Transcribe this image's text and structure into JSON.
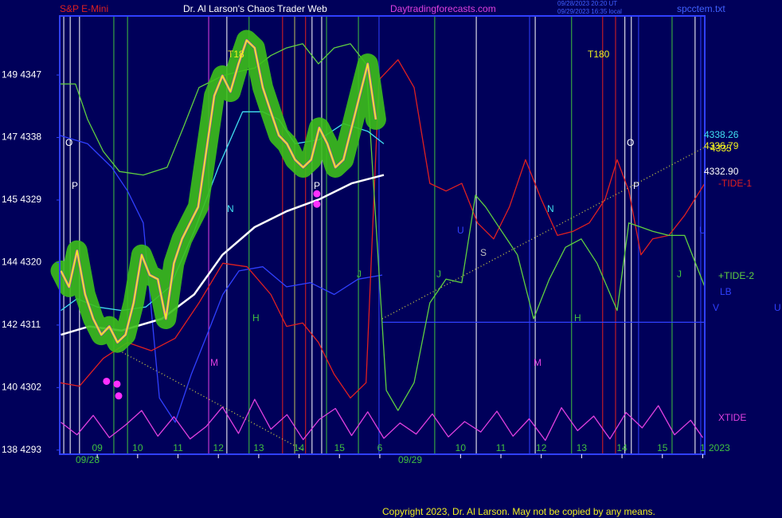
{
  "header": {
    "symbol": "S&P E-Mini",
    "title": "Dr. Al Larson's Chaos Trader Web",
    "site": "Daytradingforecasts.com",
    "stamp1": "09/28/2023 20:20 UT",
    "stamp2": "09/29/2023 16:35 local",
    "file": "spcctem.txt"
  },
  "labels": {
    "dates": [
      "09/28",
      "09/29",
      "2023"
    ],
    "right": [
      "4338.26",
      "4336.79",
      "4335",
      "4332.90",
      "-TIDE-1",
      "+TIDE-2",
      "LB",
      "XTIDE"
    ],
    "letters": [
      "O",
      "P",
      "T18",
      "N",
      "H",
      "M",
      "J",
      "P",
      "O",
      "P",
      "N",
      "H",
      "M",
      "J",
      "U",
      "S",
      "J",
      "U",
      "V",
      "U",
      "T180"
    ]
  },
  "footer": "Copyright 2023, Dr. Al Larson. May not be copied by any means.",
  "chart_data": {
    "type": "line",
    "xlim": [
      8.07,
      24.05
    ],
    "ylim": [
      4292.4,
      4355.5
    ],
    "xticks": [
      {
        "value": 9,
        "label": "09"
      },
      10,
      11,
      12,
      13,
      14,
      15,
      {
        "value": 16,
        "label": "6"
      },
      {
        "value": 18,
        "label": "10"
      },
      {
        "value": 19,
        "label": "11"
      },
      {
        "value": 20,
        "label": "12"
      },
      {
        "value": 21,
        "label": "13"
      },
      {
        "value": 22,
        "label": "14"
      },
      {
        "value": 23,
        "label": "15"
      },
      {
        "value": 24,
        "label": "1"
      }
    ],
    "yticks": [
      {
        "value": 4347,
        "label": "149 4347"
      },
      {
        "value": 4338,
        "label": "147 4338"
      },
      {
        "value": 4329,
        "label": "145 4329"
      },
      {
        "value": 4320,
        "label": "144 4320"
      },
      {
        "value": 4311,
        "label": "142 4311"
      },
      {
        "value": 4302,
        "label": "140 4302"
      },
      {
        "value": 4293,
        "label": "138 4293"
      }
    ],
    "vlines": [
      {
        "x": 8.17,
        "color": "#ffffff"
      },
      {
        "x": 8.33,
        "color": "#ffffff"
      },
      {
        "x": 8.56,
        "color": "#ffffff"
      },
      {
        "x": 9.41,
        "color": "#40c040"
      },
      {
        "x": 9.75,
        "color": "#40c040"
      },
      {
        "x": 11.76,
        "color": "#e040e0"
      },
      {
        "x": 12.21,
        "color": "#ffffff"
      },
      {
        "x": 12.76,
        "color": "#40c040"
      },
      {
        "x": 13.59,
        "color": "#e02020"
      },
      {
        "x": 13.89,
        "color": "#c0c060"
      },
      {
        "x": 14.16,
        "color": "#e02020"
      },
      {
        "x": 14.32,
        "color": "#ffffff"
      },
      {
        "x": 14.56,
        "color": "#ffffff"
      },
      {
        "x": 14.68,
        "color": "#40c040"
      },
      {
        "x": 15.47,
        "color": "#40c040"
      },
      {
        "x": 15.98,
        "color": "#3040ff"
      },
      {
        "x": 17.36,
        "color": "#40c040"
      },
      {
        "x": 18.39,
        "color": "#ffffff"
      },
      {
        "x": 19.71,
        "color": "#3040ff"
      },
      {
        "x": 19.85,
        "color": "#ffffff"
      },
      {
        "x": 20.75,
        "color": "#40c040"
      },
      {
        "x": 21.52,
        "color": "#e02020"
      },
      {
        "x": 21.84,
        "color": "#e02020"
      },
      {
        "x": 22.07,
        "color": "#ffffff"
      },
      {
        "x": 22.23,
        "color": "#ffffff"
      },
      {
        "x": 22.41,
        "color": "#3040ff"
      },
      {
        "x": 23.24,
        "color": "#40c040"
      },
      {
        "x": 23.81,
        "color": "#ffffff"
      },
      {
        "x": 23.95,
        "color": "#3040ff"
      }
    ],
    "trendlines": [
      {
        "x": [
          9.55,
          14.09
        ],
        "y": [
          4307.3,
          4293.0
        ],
        "color": "#e0e040"
      },
      {
        "x": [
          16.06,
          24.05
        ],
        "y": [
          4311.9,
          4336.6
        ],
        "color": "#e0e040"
      }
    ],
    "series": [
      {
        "color": "#3040ff",
        "style": "line",
        "x": [
          8.07,
          8.76,
          9.36,
          9.75,
          10.14,
          10.54,
          10.93,
          11.33,
          11.72,
          12.11,
          12.51,
          13.1,
          13.69,
          14.28,
          14.87,
          15.46,
          16.06
        ],
        "values": [
          4338.3,
          4337.1,
          4333.7,
          4330.3,
          4325.7,
          4300.5,
          4297.0,
          4303.9,
          4309.6,
          4315.4,
          4318.8,
          4319.4,
          4316.5,
          4317.1,
          4315.4,
          4317.6,
          4318.2
        ]
      },
      {
        "color": "#3040ff",
        "style": "line",
        "x": [
          16.06,
          24.05
        ],
        "values": [
          4311.4,
          4311.4
        ]
      },
      {
        "color": "#e02020",
        "style": "line",
        "x": [
          8.07,
          8.56,
          9.15,
          9.75,
          10.34,
          10.93,
          11.52,
          12.11,
          12.71,
          13.3,
          13.69,
          14.09,
          14.48,
          14.87,
          15.27,
          15.66,
          15.98,
          16.45,
          16.85,
          17.24,
          17.64,
          18.03,
          18.42,
          18.82,
          19.21,
          19.61,
          20.0,
          20.4,
          20.79,
          21.19,
          21.58,
          21.88,
          22.17,
          22.47,
          22.76,
          23.16,
          23.55,
          24.05
        ],
        "values": [
          4302.7,
          4302.2,
          4306.2,
          4308.5,
          4307.3,
          4309.1,
          4314.2,
          4319.9,
          4319.4,
          4315.4,
          4310.8,
          4311.3,
          4308.5,
          4303.9,
          4300.5,
          4302.7,
          4346.3,
          4349.2,
          4345.2,
          4331.4,
          4330.3,
          4331.4,
          4325.7,
          4323.4,
          4328.0,
          4334.8,
          4329.1,
          4323.9,
          4324.5,
          4325.7,
          4329.1,
          4334.8,
          4330.3,
          4321.1,
          4323.4,
          4323.9,
          4326.8,
          4331.4
        ]
      },
      {
        "color": "#60d040",
        "style": "line",
        "x": [
          8.07,
          8.46,
          8.76,
          9.15,
          9.55,
          10.14,
          10.73,
          11.13,
          11.52,
          12.11,
          12.51,
          12.9,
          13.3,
          13.69,
          14.09,
          14.48,
          14.87,
          15.27,
          15.66,
          16.16,
          16.45,
          16.85,
          17.24,
          17.64,
          18.03,
          18.37,
          18.62,
          19.02,
          19.41,
          19.81,
          20.2,
          20.6,
          20.99,
          21.38,
          21.88,
          22.17,
          22.47,
          22.76,
          23.16,
          23.55,
          24.05
        ],
        "values": [
          4345.7,
          4345.7,
          4340.6,
          4336.0,
          4333.1,
          4332.6,
          4333.7,
          4339.4,
          4345.2,
          4346.9,
          4347.5,
          4348.0,
          4349.8,
          4350.9,
          4351.5,
          4348.6,
          4350.9,
          4351.5,
          4348.6,
          4301.6,
          4298.7,
          4302.7,
          4314.2,
          4317.6,
          4317.1,
          4329.7,
          4328.0,
          4324.5,
          4321.1,
          4311.9,
          4317.6,
          4322.2,
          4323.4,
          4319.9,
          4313.1,
          4325.7,
          4325.1,
          4324.5,
          4323.9,
          4323.9,
          4316.5
        ]
      },
      {
        "color": "#e040e0",
        "style": "line",
        "x": [
          8.1,
          8.5,
          8.9,
          9.3,
          9.7,
          10.1,
          10.5,
          10.9,
          11.3,
          11.7,
          12.1,
          12.5,
          12.9,
          13.3,
          13.7,
          14.1,
          14.5,
          14.9,
          15.3,
          15.7,
          16.1,
          16.5,
          16.9,
          17.3,
          17.7,
          18.1,
          18.5,
          18.9,
          19.3,
          19.7,
          20.1,
          20.5,
          20.9,
          21.3,
          21.7,
          22.1,
          22.5,
          22.9,
          23.3,
          23.7,
          24.0
        ],
        "values": [
          4297.0,
          4295.2,
          4298.0,
          4294.8,
          4296.6,
          4298.7,
          4295.0,
          4297.8,
          4294.6,
          4296.4,
          4299.2,
          4295.4,
          4300.3,
          4296.0,
          4298.1,
          4294.5,
          4297.4,
          4299.0,
          4295.1,
          4298.5,
          4294.7,
          4296.9,
          4295.3,
          4298.2,
          4294.9,
          4297.1,
          4295.6,
          4298.6,
          4295.0,
          4297.5,
          4294.4,
          4299.1,
          4295.8,
          4297.9,
          4294.6,
          4298.4,
          4296.2,
          4299.4,
          4295.2,
          4297.3,
          4294.8
        ]
      },
      {
        "color": "#ffffff",
        "style": "line",
        "x": [
          8.1,
          8.8,
          9.6,
          10.6,
          11.4,
          12.1,
          12.9,
          13.7,
          14.5,
          15.3,
          16.1
        ],
        "values": [
          4309.6,
          4310.8,
          4310.2,
          4311.9,
          4315.4,
          4321.1,
          4325.1,
          4327.4,
          4329.1,
          4331.4,
          4332.6
        ]
      },
      {
        "color": "#40e0f0",
        "style": "line",
        "x": [
          8.1,
          8.5,
          9.0,
          9.6,
          10.2,
          10.8,
          11.4,
          12.0,
          12.6,
          13.1,
          13.5,
          13.9,
          14.5,
          15.1,
          15.7,
          16.1
        ],
        "values": [
          4313.1,
          4314.8,
          4313.6,
          4313.1,
          4313.6,
          4316.5,
          4324.5,
          4333.7,
          4341.7,
          4341.7,
          4340.6,
          4337.1,
          4337.7,
          4340.0,
          4338.9,
          4337.1
        ]
      },
      {
        "color": "#f0f020",
        "style": "glow",
        "x": [
          8.1,
          8.3,
          8.5,
          8.7,
          8.9,
          9.1,
          9.3,
          9.5,
          9.7,
          9.9,
          10.1,
          10.3,
          10.5,
          10.7,
          10.9,
          11.1,
          11.3,
          11.5,
          11.7,
          11.9,
          12.1,
          12.3,
          12.5,
          12.7,
          12.9,
          13.1,
          13.3,
          13.5,
          13.7,
          13.9,
          14.1,
          14.3,
          14.5,
          14.7,
          14.9,
          15.1,
          15.3,
          15.5,
          15.7,
          15.9
        ],
        "values": [
          4318.8,
          4316.5,
          4321.7,
          4315.4,
          4311.9,
          4309.6,
          4310.8,
          4308.5,
          4309.6,
          4314.2,
          4321.1,
          4318.2,
          4317.6,
          4311.9,
          4319.9,
          4323.4,
          4325.7,
          4328.0,
          4336.0,
          4344.0,
          4346.9,
          4344.6,
          4348.6,
          4352.0,
          4350.9,
          4345.2,
          4341.7,
          4338.3,
          4337.1,
          4334.8,
          4333.7,
          4334.8,
          4339.4,
          4337.1,
          4333.7,
          4334.8,
          4339.4,
          4344.0,
          4348.6,
          4340.6
        ]
      },
      {
        "color": "#ff30ff",
        "style": "dots",
        "x": [
          9.23,
          9.49,
          9.53,
          14.44,
          14.44
        ],
        "values": [
          4302.9,
          4302.5,
          4300.8,
          4329.9,
          4328.4
        ]
      }
    ]
  }
}
